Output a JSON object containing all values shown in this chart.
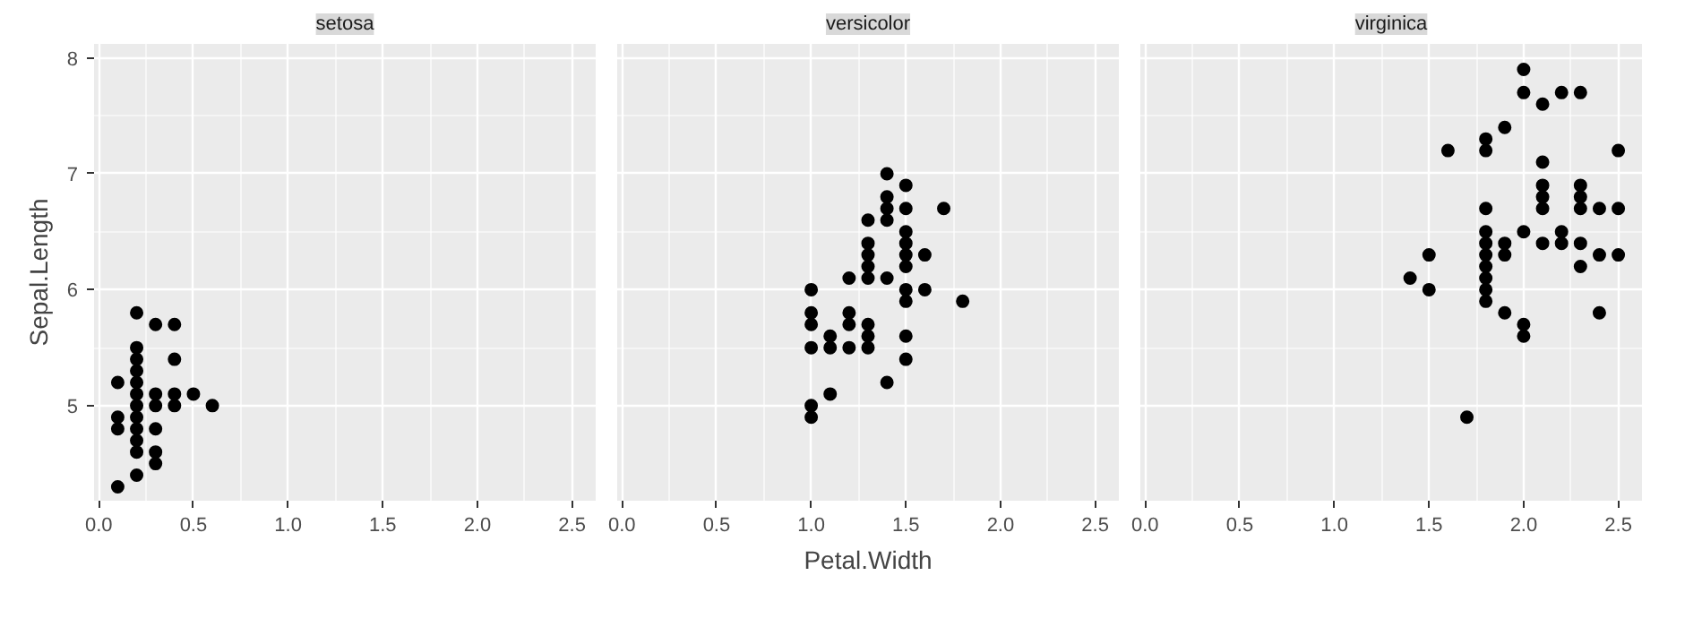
{
  "chart_data": [
    {
      "type": "scatter",
      "title": "setosa",
      "ylabel": "Sepal.Length",
      "marker": "circle",
      "grid": true,
      "xlim": [
        -0.025,
        2.625
      ],
      "ylim": [
        4.18,
        8.12
      ],
      "xticks": [
        {
          "value": 0,
          "label": "0.0"
        },
        {
          "value": 0.5,
          "label": "0.5"
        },
        {
          "value": 1,
          "label": "1.0"
        },
        {
          "value": 1.5,
          "label": "1.5"
        },
        {
          "value": 2,
          "label": "2.0"
        },
        {
          "value": 2.5,
          "label": "2.5"
        }
      ],
      "yticks": [
        5,
        6,
        7,
        8
      ],
      "series": [
        {
          "color": "#000000",
          "x": [
            0.1,
            0.1,
            0.1,
            0.1,
            0.2,
            0.2,
            0.2,
            0.2,
            0.2,
            0.2,
            0.2,
            0.2,
            0.2,
            0.2,
            0.2,
            0.2,
            0.3,
            0.3,
            0.3,
            0.3,
            0.3,
            0.3,
            0.4,
            0.4,
            0.4,
            0.4,
            0.5,
            0.6
          ],
          "values": [
            4.3,
            4.8,
            4.9,
            5.2,
            4.4,
            4.6,
            4.7,
            4.8,
            4.9,
            5.0,
            5.1,
            5.2,
            5.3,
            5.4,
            5.5,
            5.8,
            4.5,
            4.6,
            4.8,
            5.0,
            5.1,
            5.7,
            5.0,
            5.1,
            5.4,
            5.7,
            5.1,
            5.0
          ]
        }
      ]
    },
    {
      "type": "scatter",
      "title": "versicolor",
      "xlabel": "Petal.Width",
      "marker": "circle",
      "grid": true,
      "tick_labels": "x",
      "xlim": [
        -0.025,
        2.625
      ],
      "ylim": [
        4.18,
        8.12
      ],
      "xticks": [
        {
          "value": 0,
          "label": "0.0"
        },
        {
          "value": 0.5,
          "label": "0.5"
        },
        {
          "value": 1,
          "label": "1.0"
        },
        {
          "value": 1.5,
          "label": "1.5"
        },
        {
          "value": 2,
          "label": "2.0"
        },
        {
          "value": 2.5,
          "label": "2.5"
        }
      ],
      "yticks": [
        5,
        6,
        7,
        8
      ],
      "series": [
        {
          "color": "#000000",
          "x": [
            1.0,
            1.0,
            1.0,
            1.0,
            1.0,
            1.0,
            1.1,
            1.1,
            1.1,
            1.2,
            1.2,
            1.2,
            1.2,
            1.3,
            1.3,
            1.3,
            1.3,
            1.3,
            1.3,
            1.3,
            1.3,
            1.4,
            1.4,
            1.4,
            1.4,
            1.4,
            1.4,
            1.5,
            1.5,
            1.5,
            1.5,
            1.5,
            1.5,
            1.5,
            1.5,
            1.5,
            1.5,
            1.6,
            1.6,
            1.7,
            1.8
          ],
          "values": [
            6.0,
            5.8,
            5.7,
            5.5,
            5.0,
            4.9,
            5.6,
            5.5,
            5.1,
            6.1,
            5.8,
            5.7,
            5.5,
            6.6,
            6.4,
            6.3,
            6.2,
            6.1,
            5.7,
            5.6,
            5.5,
            7.0,
            6.8,
            6.7,
            6.6,
            6.1,
            5.2,
            6.9,
            6.7,
            6.5,
            6.4,
            6.3,
            6.2,
            6.0,
            5.9,
            5.6,
            5.4,
            6.3,
            6.0,
            6.7,
            5.9
          ]
        }
      ]
    },
    {
      "type": "scatter",
      "title": "virginica",
      "marker": "circle",
      "grid": true,
      "tick_labels": "x",
      "xlim": [
        -0.025,
        2.625
      ],
      "ylim": [
        4.18,
        8.12
      ],
      "xticks": [
        {
          "value": 0,
          "label": "0.0"
        },
        {
          "value": 0.5,
          "label": "0.5"
        },
        {
          "value": 1,
          "label": "1.0"
        },
        {
          "value": 1.5,
          "label": "1.5"
        },
        {
          "value": 2,
          "label": "2.0"
        },
        {
          "value": 2.5,
          "label": "2.5"
        }
      ],
      "yticks": [
        5,
        6,
        7,
        8
      ],
      "series": [
        {
          "color": "#000000",
          "x": [
            1.4,
            1.5,
            1.5,
            1.6,
            1.7,
            1.8,
            1.8,
            1.8,
            1.8,
            1.8,
            1.8,
            1.8,
            1.8,
            1.8,
            1.8,
            1.9,
            1.9,
            1.9,
            1.9,
            2.0,
            2.0,
            2.0,
            2.0,
            2.0,
            2.1,
            2.1,
            2.1,
            2.1,
            2.1,
            2.1,
            2.2,
            2.2,
            2.2,
            2.3,
            2.3,
            2.3,
            2.3,
            2.3,
            2.3,
            2.4,
            2.4,
            2.4,
            2.5,
            2.5,
            2.5
          ],
          "values": [
            6.1,
            6.3,
            6.0,
            7.2,
            4.9,
            7.3,
            7.2,
            6.7,
            6.5,
            6.4,
            6.3,
            6.2,
            6.1,
            6.0,
            5.9,
            7.4,
            6.4,
            6.3,
            5.8,
            7.9,
            7.7,
            6.5,
            5.7,
            5.6,
            7.6,
            7.1,
            6.9,
            6.8,
            6.7,
            6.4,
            7.7,
            6.5,
            6.4,
            7.7,
            6.9,
            6.8,
            6.7,
            6.4,
            6.2,
            6.7,
            6.3,
            5.8,
            7.2,
            6.7,
            6.3
          ]
        }
      ]
    }
  ]
}
